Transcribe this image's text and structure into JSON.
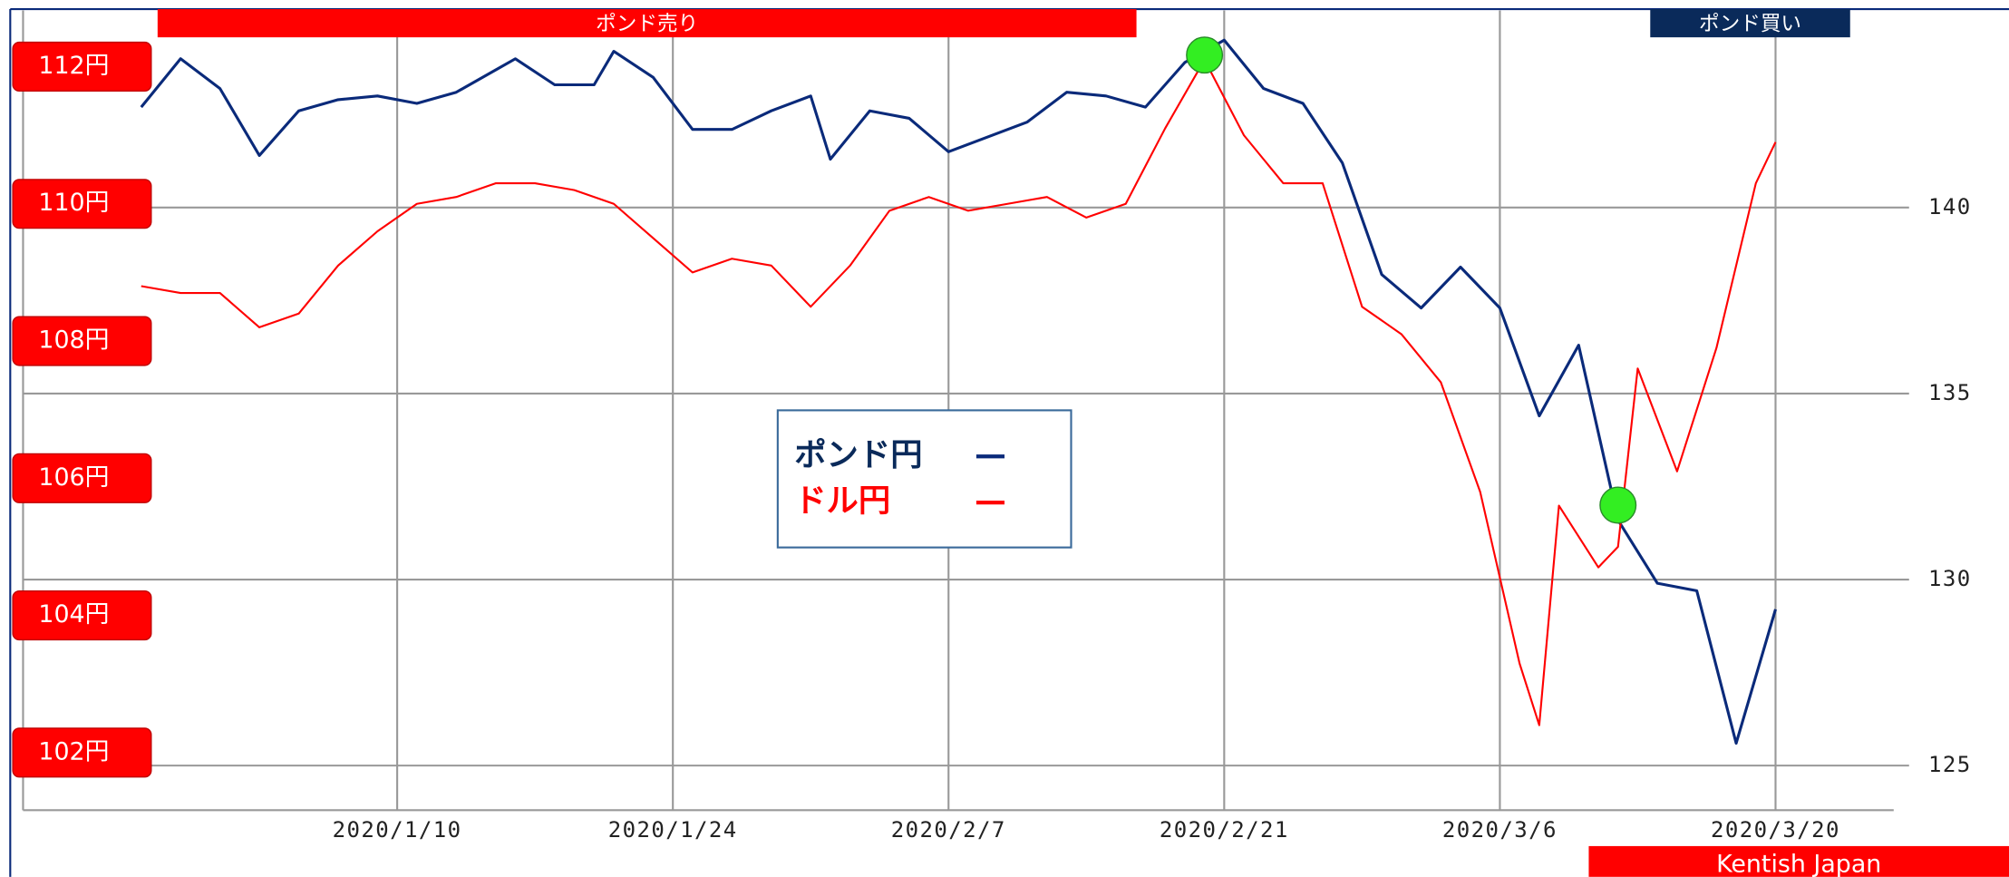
{
  "chart_data": {
    "type": "line",
    "annotations": [
      "ポンド売り",
      "ポンド買い"
    ],
    "source": "Kentish Japan",
    "xlim": [
      "2019/12/22",
      "2020/3/26"
    ],
    "xticks": [
      "2020/1/10",
      "2020/1/24",
      "2020/2/7",
      "2020/2/21",
      "2020/3/6",
      "2020/3/20"
    ],
    "ylim": [
      101.16,
      112.82
    ],
    "yticks": [
      {
        "value": 102,
        "label": "102円"
      },
      {
        "value": 104,
        "label": "104円"
      },
      {
        "value": 106,
        "label": "106円"
      },
      {
        "value": 108,
        "label": "108円"
      },
      {
        "value": 110,
        "label": "110円"
      },
      {
        "value": 112,
        "label": "112円"
      }
    ],
    "y2lim": [
      123.8,
      145.3
    ],
    "y2ticks": [
      125,
      130,
      135,
      140
    ],
    "grid": true,
    "series": [
      {
        "name": "ポンド円",
        "color": "#0a2a7a",
        "axis": "y2",
        "x": [
          "2019/12/28",
          "2019/12/30",
          "2020/1/1",
          "2020/1/3",
          "2020/1/5",
          "2020/1/7",
          "2020/1/9",
          "2020/1/11",
          "2020/1/13",
          "2020/1/15",
          "2020/1/16",
          "2020/1/18",
          "2020/1/20",
          "2020/1/21",
          "2020/1/23",
          "2020/1/25",
          "2020/1/27",
          "2020/1/29",
          "2020/1/31",
          "2020/2/1",
          "2020/2/3",
          "2020/2/5",
          "2020/2/7",
          "2020/2/9",
          "2020/2/11",
          "2020/2/13",
          "2020/2/15",
          "2020/2/17",
          "2020/2/19",
          "2020/2/21",
          "2020/2/23",
          "2020/2/25",
          "2020/2/27",
          "2020/2/29",
          "2020/3/2",
          "2020/3/4",
          "2020/3/6",
          "2020/3/8",
          "2020/3/10",
          "2020/3/12",
          "2020/3/14",
          "2020/3/16",
          "2020/3/18",
          "2020/3/20"
        ],
        "values": [
          142.7,
          144.0,
          143.2,
          141.4,
          142.6,
          142.9,
          143.0,
          142.8,
          143.1,
          143.7,
          144.0,
          143.3,
          143.3,
          144.2,
          143.5,
          142.1,
          142.1,
          142.6,
          143.0,
          141.3,
          142.6,
          142.4,
          141.5,
          141.9,
          142.3,
          143.1,
          143.0,
          142.7,
          143.9,
          144.5,
          143.2,
          142.8,
          141.2,
          138.2,
          137.3,
          138.4,
          137.3,
          134.4,
          136.3,
          131.6,
          129.9,
          129.7,
          125.6,
          129.2
        ]
      },
      {
        "name": "ドル円",
        "color": "#ff0000",
        "x": [
          "2019/12/28",
          "2019/12/30",
          "2020/1/1",
          "2020/1/3",
          "2020/1/5",
          "2020/1/7",
          "2020/1/9",
          "2020/1/11",
          "2020/1/13",
          "2020/1/15",
          "2020/1/17",
          "2020/1/19",
          "2020/1/21",
          "2020/1/23",
          "2020/1/25",
          "2020/1/27",
          "2020/1/29",
          "2020/1/31",
          "2020/2/2",
          "2020/2/4",
          "2020/2/6",
          "2020/2/8",
          "2020/2/10",
          "2020/2/12",
          "2020/2/14",
          "2020/2/16",
          "2020/2/18",
          "2020/2/20",
          "2020/2/22",
          "2020/2/24",
          "2020/2/26",
          "2020/2/28",
          "2020/3/1",
          "2020/3/3",
          "2020/3/5",
          "2020/3/7",
          "2020/3/8",
          "2020/3/9",
          "2020/3/11",
          "2020/3/12",
          "2020/3/13",
          "2020/3/15",
          "2020/3/17",
          "2020/3/19",
          "2020/3/20"
        ],
        "values": [
          108.8,
          108.7,
          108.7,
          108.2,
          108.4,
          109.1,
          109.6,
          110.0,
          110.1,
          110.3,
          110.3,
          110.2,
          110.0,
          109.5,
          109.0,
          109.2,
          109.1,
          108.5,
          109.1,
          109.9,
          110.1,
          109.9,
          110.0,
          110.1,
          109.8,
          110.0,
          111.1,
          112.1,
          111.0,
          110.3,
          110.3,
          108.5,
          108.1,
          107.4,
          105.8,
          103.3,
          102.4,
          105.6,
          104.7,
          105.0,
          107.6,
          106.1,
          107.9,
          110.3,
          110.9
        ]
      }
    ],
    "markers": [
      {
        "x": "2020/2/20",
        "value": 144.1,
        "color": "#33ee22"
      },
      {
        "x": "2020/3/12",
        "value": 132.0,
        "color": "#33ee22"
      }
    ]
  }
}
